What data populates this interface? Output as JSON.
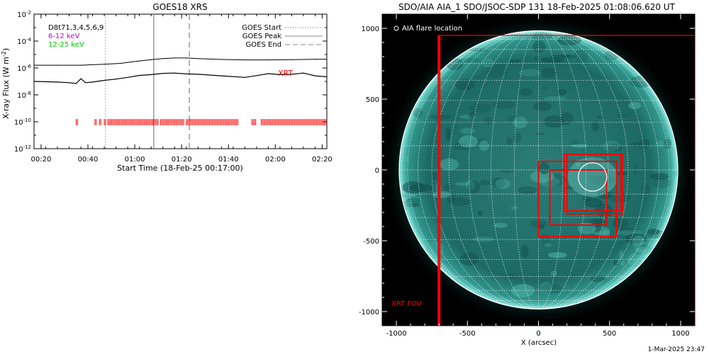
{
  "footer": {
    "timestamp": "1-Mar-2025 23:47"
  },
  "goes_panel": {
    "title": "GOES18 XRS",
    "ylabel": "X-ray Flux (W m",
    "ylabel_exp": "-2",
    "ylabel_close": ")",
    "xlabel": "Start Time (18-Feb-25 00:17:00)",
    "legend_left": [
      "D8t71,3,4,5,6,9",
      "6-12 keV",
      "12-25 keV"
    ],
    "legend_right": [
      "GOES Start",
      "GOES Peak",
      "GOES End"
    ],
    "xrt_label": "XRT",
    "colors": {
      "low_energy": "#cc00cc",
      "high_energy": "#00cc00",
      "xrt": "#ff0000"
    }
  },
  "aia_panel": {
    "title": "SDO/AIA AIA_1 SDO/JSOC-SDP 131 18-Feb-2025 01:08:06.620 UT",
    "xlabel": "X (arcsec)",
    "legend": "AIA flare location",
    "fov_label": "XRT FOV",
    "colors": {
      "disk": "#1c7a74",
      "limb_glow": "#5fd3c8",
      "fov": "#ff0000"
    }
  },
  "chart_data": [
    {
      "type": "line",
      "title": "GOES18 XRS",
      "xlabel": "Start Time (18-Feb-25 00:17:00)",
      "ylabel": "X-ray Flux (W m^-2)",
      "yscale": "log",
      "ylim": [
        1e-12,
        0.01
      ],
      "xlim_minutes": [
        0,
        125
      ],
      "x_tick_labels": [
        "00:20",
        "00:40",
        "01:00",
        "01:20",
        "01:40",
        "02:00",
        "02:20"
      ],
      "x_tick_minutes": [
        3,
        23,
        43,
        63,
        83,
        103,
        123
      ],
      "y_tick_labels": [
        "10^-12",
        "10^-10",
        "10^-8",
        "10^-6",
        "10^-4",
        "10^-2"
      ],
      "y_tick_values": [
        1e-12,
        1e-10,
        1e-08,
        1e-06,
        0.0001,
        0.01
      ],
      "series": [
        {
          "name": "6-12 keV",
          "x_minutes": [
            0,
            10,
            20,
            30,
            37,
            40,
            45,
            50,
            55,
            60,
            65,
            70,
            80,
            90,
            100,
            110,
            120,
            125
          ],
          "y": [
            1.6e-06,
            1.6e-06,
            1.6e-06,
            1.9e-06,
            2.2e-06,
            2.6e-06,
            3.3e-06,
            4.2e-06,
            5e-06,
            5.5e-06,
            5.5e-06,
            5e-06,
            4.3e-06,
            4e-06,
            4e-06,
            4.2e-06,
            4.4e-06,
            4.5e-06
          ]
        },
        {
          "name": "12-25 keV",
          "x_minutes": [
            0,
            10,
            15,
            18,
            20,
            22,
            25,
            30,
            35,
            40,
            45,
            50,
            55,
            60,
            65,
            70,
            80,
            90,
            95,
            100,
            105,
            110,
            115,
            120,
            125
          ],
          "y": [
            1e-07,
            9e-08,
            8e-08,
            7e-08,
            1.6e-07,
            8e-08,
            9e-08,
            1.2e-07,
            1.5e-07,
            2e-07,
            2.8e-07,
            3.2e-07,
            4e-07,
            4.2e-07,
            3.6e-07,
            3.4e-07,
            2.6e-07,
            2e-07,
            2.7e-07,
            3.8e-07,
            3.2e-07,
            3.4e-07,
            4.2e-07,
            2.6e-07,
            2.2e-07
          ]
        }
      ],
      "markers_minutes": {
        "GOES Start": 30.5,
        "GOES Peak": 51.1,
        "GOES End": 66.3
      },
      "xrt_coverage_minutes": [
        [
          18,
          19
        ],
        [
          26,
          27
        ],
        [
          28,
          29
        ],
        [
          30,
          31
        ],
        [
          31.5,
          53
        ],
        [
          54,
          64
        ],
        [
          65,
          87
        ],
        [
          93,
          95
        ],
        [
          97,
          125
        ]
      ]
    },
    {
      "type": "scatter",
      "title": "SDO/AIA AIA_1 SDO/JSOC-SDP 131 18-Feb-2025 01:08:06.620 UT",
      "xlabel": "X (arcsec)",
      "xlim": [
        -1100,
        1100
      ],
      "ylim": [
        -1100,
        1100
      ],
      "x_tick_labels": [
        "-1000",
        "-500",
        "0",
        "500",
        "1000"
      ],
      "x_tick_values": [
        -1000,
        -500,
        0,
        500,
        1000
      ],
      "y_tick_labels": [
        "-1000",
        "-500",
        "0",
        "500",
        "1000"
      ],
      "y_tick_values": [
        -1000,
        -500,
        0,
        500,
        1000
      ],
      "solar_radius_arcsec": 980,
      "flare_location": {
        "x": 380,
        "y": -50,
        "radius": 100
      },
      "xrt_fov_boxes": [
        {
          "x0": -700,
          "y0": -1100,
          "x1": 1100,
          "y1": 950
        },
        {
          "x0": 0,
          "y0": -470,
          "x1": 550,
          "y1": 60
        },
        {
          "x0": 80,
          "y0": -390,
          "x1": 480,
          "y1": 0
        },
        {
          "x0": 180,
          "y0": -290,
          "x1": 580,
          "y1": 110
        },
        {
          "x0": 200,
          "y0": -310,
          "x1": 590,
          "y1": 110
        }
      ]
    }
  ]
}
